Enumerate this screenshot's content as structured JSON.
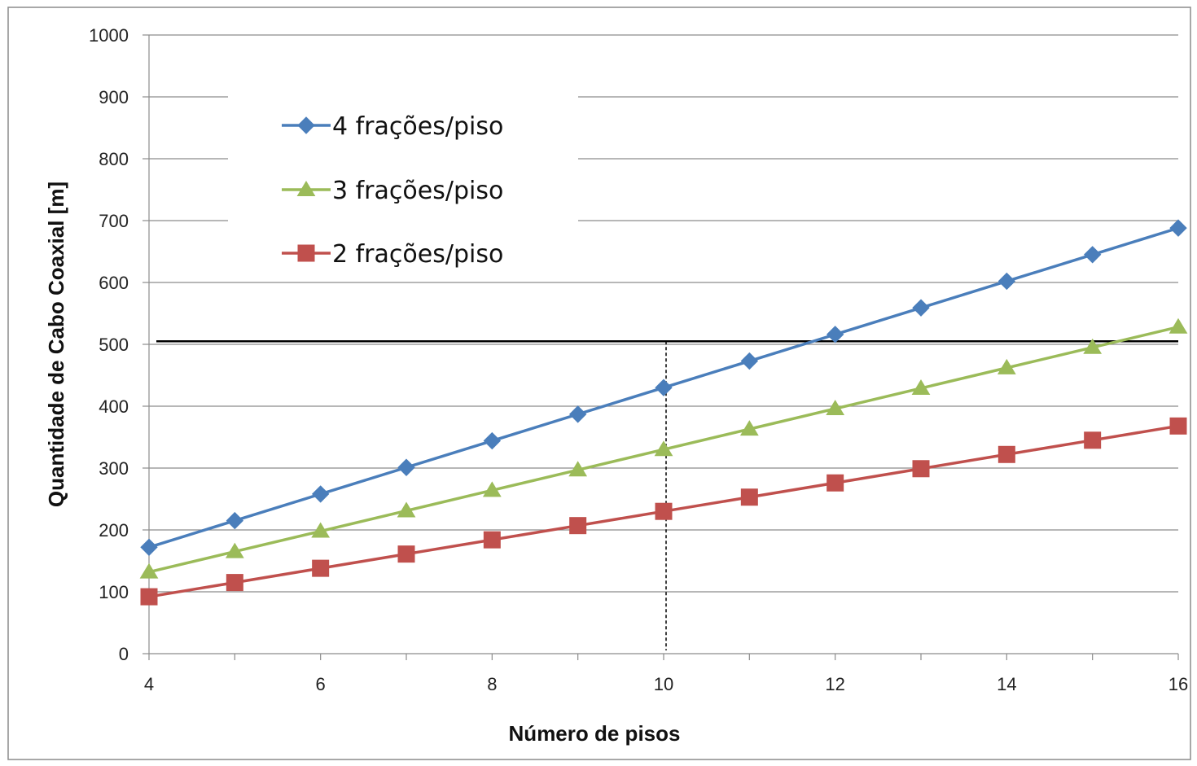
{
  "chart_data": {
    "type": "line",
    "xlabel": "Número de pisos",
    "ylabel": "Quantidade de Cabo Coaxial [m]",
    "xlim": [
      4,
      16
    ],
    "ylim": [
      0,
      1000
    ],
    "x_ticks": [
      4,
      6,
      8,
      10,
      12,
      14,
      16
    ],
    "y_ticks": [
      0,
      100,
      200,
      300,
      400,
      500,
      600,
      700,
      800,
      900,
      1000
    ],
    "grid": "horizontal",
    "legend_position": "top-left",
    "x": [
      4,
      5,
      6,
      7,
      8,
      9,
      10,
      11,
      12,
      13,
      14,
      15,
      16
    ],
    "series": [
      {
        "name": "4 frações/piso",
        "color": "#4a7ebb",
        "marker": "diamond",
        "values": [
          172,
          215,
          258,
          301,
          344,
          387,
          430,
          473,
          516,
          559,
          602,
          645,
          688
        ]
      },
      {
        "name": "3 frações/piso",
        "color": "#9bbb59",
        "marker": "triangle",
        "values": [
          132,
          165,
          198,
          231,
          264,
          297,
          330,
          363,
          396,
          429,
          462,
          495,
          528
        ]
      },
      {
        "name": "2 frações/piso",
        "color": "#c0504d",
        "marker": "square",
        "values": [
          92,
          115,
          138,
          161,
          184,
          207,
          230,
          253,
          276,
          299,
          322,
          345,
          368
        ]
      }
    ],
    "reference_lines": [
      {
        "orientation": "horizontal",
        "value": 505,
        "style": "solid",
        "color": "#000000"
      },
      {
        "orientation": "vertical",
        "value": 10,
        "style": "dashed",
        "color": "#000000"
      }
    ]
  }
}
